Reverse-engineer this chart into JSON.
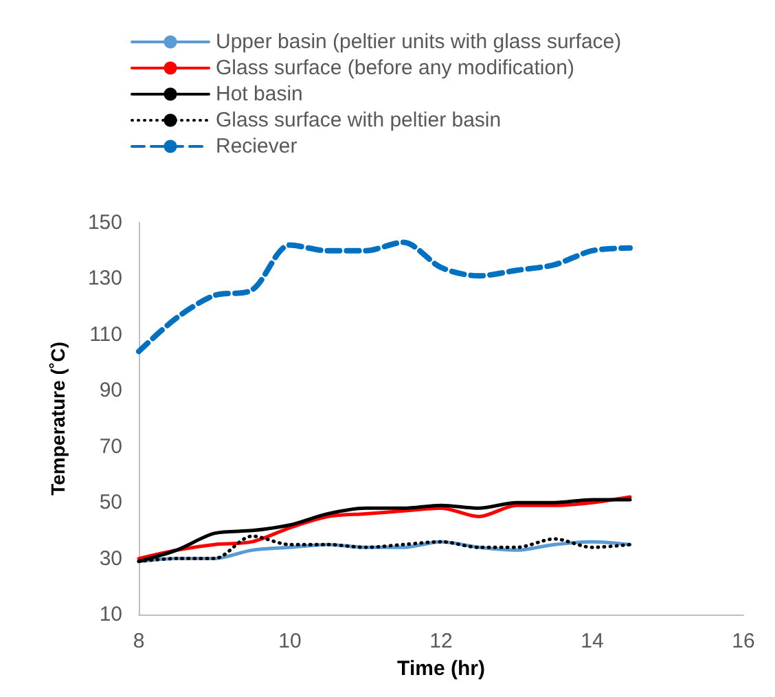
{
  "chart_data": {
    "type": "line",
    "xlabel": "Time (hr)",
    "ylabel": "Temperature (˚C)",
    "x": [
      8,
      8.5,
      9,
      9.5,
      10,
      10.5,
      11,
      11.5,
      12,
      12.5,
      13,
      13.5,
      14,
      14.5
    ],
    "xlim": [
      8,
      16
    ],
    "xticks": [
      8,
      10,
      12,
      14,
      16
    ],
    "ylim": [
      10,
      150
    ],
    "yticks": [
      10,
      30,
      50,
      70,
      90,
      110,
      130,
      150
    ],
    "grid": false,
    "legend": "top",
    "marker": "none",
    "series": [
      {
        "name": "Upper basin (peltier units with glass surface)",
        "color": "#5b9bd5",
        "line_style": "solid",
        "values": [
          29,
          30,
          30,
          33,
          34,
          35,
          34,
          34,
          36,
          34,
          33,
          35,
          36,
          35
        ]
      },
      {
        "name": "Glass surface (before any modification)",
        "color": "#ff0000",
        "line_style": "solid",
        "values": [
          30,
          33,
          35,
          36,
          41,
          45,
          46,
          47,
          48,
          45,
          49,
          49,
          50,
          52
        ]
      },
      {
        "name": "Hot basin",
        "color": "#000000",
        "line_style": "solid",
        "values": [
          29,
          33,
          39,
          40,
          42,
          46,
          48,
          48,
          49,
          48,
          50,
          50,
          51,
          51
        ]
      },
      {
        "name": "Glass surface with peltier basin",
        "color": "#000000",
        "line_style": "dotted",
        "values": [
          29,
          30,
          30,
          38,
          35,
          35,
          34,
          35,
          36,
          34,
          34,
          37,
          34,
          35
        ]
      },
      {
        "name": "Reciever",
        "color": "#0070c0",
        "line_style": "dashed",
        "values": [
          104,
          116,
          124,
          126,
          142,
          140,
          140,
          143,
          134,
          131,
          133,
          135,
          140,
          141
        ]
      }
    ]
  }
}
